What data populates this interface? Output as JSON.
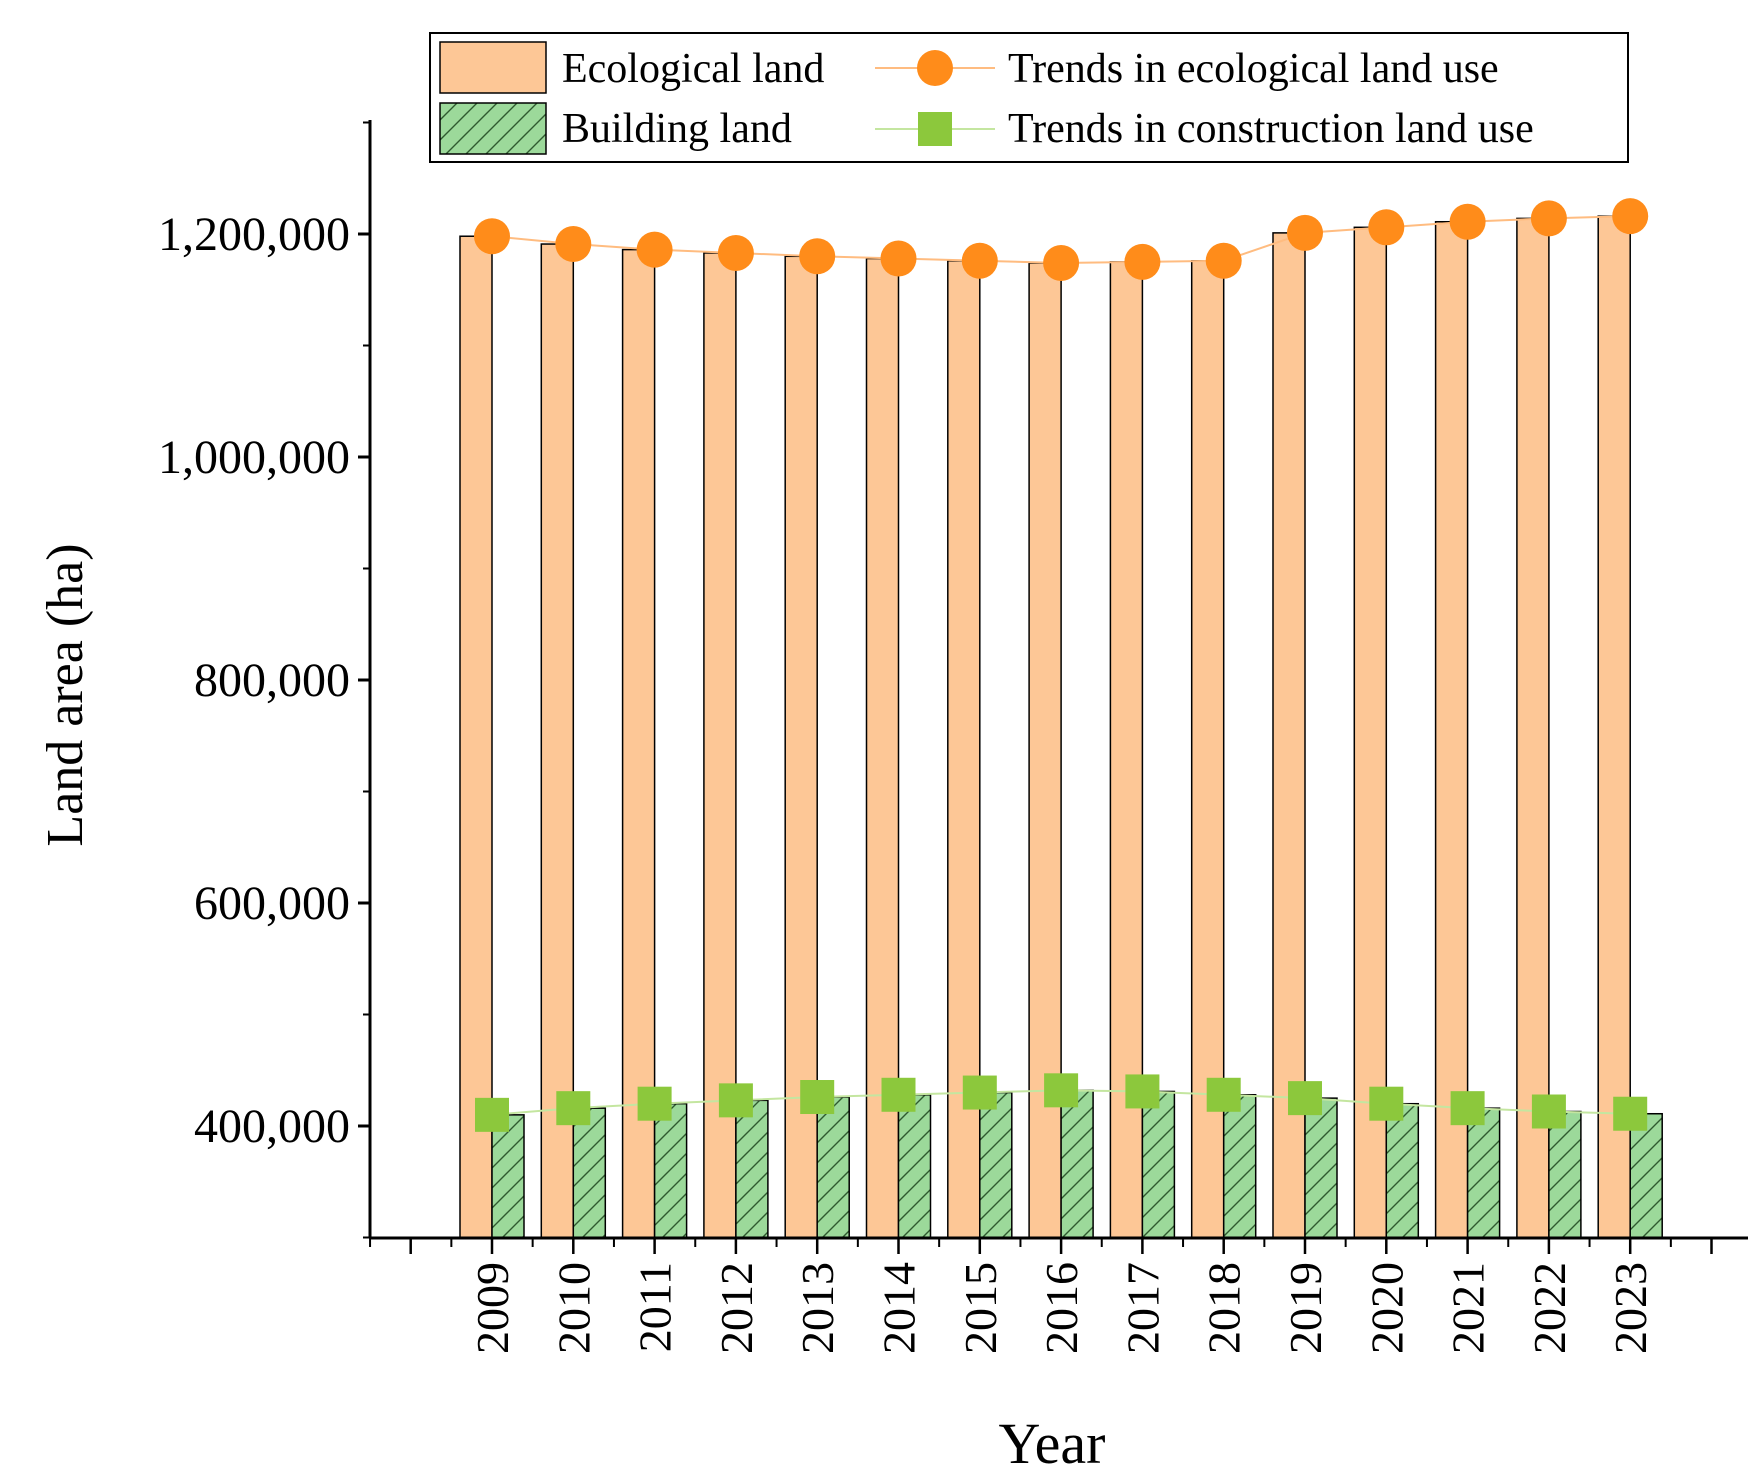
{
  "chart_data": {
    "type": "bar",
    "title": "",
    "xlabel": "Year",
    "ylabel": "Land area (ha)",
    "ylim": [
      300000,
      1300000
    ],
    "yticks": [
      400000,
      600000,
      800000,
      1000000,
      1200000
    ],
    "ytick_labels": [
      "400,000",
      "600,000",
      "800,000",
      "1,000,000",
      "1,200,000"
    ],
    "categories": [
      "2009",
      "2010",
      "2011",
      "2012",
      "2013",
      "2014",
      "2015",
      "2016",
      "2017",
      "2018",
      "2019",
      "2020",
      "2021",
      "2022",
      "2023"
    ],
    "series": [
      {
        "name": "Ecological land",
        "kind": "bar",
        "color": "#fdc796",
        "values": [
          1198000,
          1191000,
          1186000,
          1183000,
          1180000,
          1178000,
          1176000,
          1174000,
          1175000,
          1176000,
          1201000,
          1206000,
          1211000,
          1214000,
          1216000
        ]
      },
      {
        "name": "Building land",
        "kind": "bar",
        "color": "#9cd99a",
        "pattern": "hatch",
        "values": [
          410000,
          416000,
          420000,
          423000,
          426000,
          428000,
          430000,
          432000,
          431000,
          428000,
          425000,
          420000,
          416000,
          413000,
          411000
        ]
      },
      {
        "name": "Trends in ecological land use",
        "kind": "line",
        "marker": "circle",
        "color": "#ff8c1a",
        "line_color": "#ffbc80",
        "values": [
          1198000,
          1191000,
          1186000,
          1183000,
          1180000,
          1178000,
          1176000,
          1174000,
          1175000,
          1176000,
          1201000,
          1206000,
          1211000,
          1214000,
          1216000
        ]
      },
      {
        "name": "Trends in construction land use",
        "kind": "line",
        "marker": "square",
        "color": "#8cc83c",
        "line_color": "#c4e6a0",
        "values": [
          410000,
          416000,
          420000,
          423000,
          426000,
          428000,
          430000,
          432000,
          431000,
          428000,
          425000,
          420000,
          416000,
          413000,
          411000
        ]
      }
    ],
    "legend": {
      "placement": "top",
      "entries": [
        "Ecological land",
        "Trends in ecological land use",
        "Building land",
        "Trends in construction land use"
      ]
    }
  }
}
